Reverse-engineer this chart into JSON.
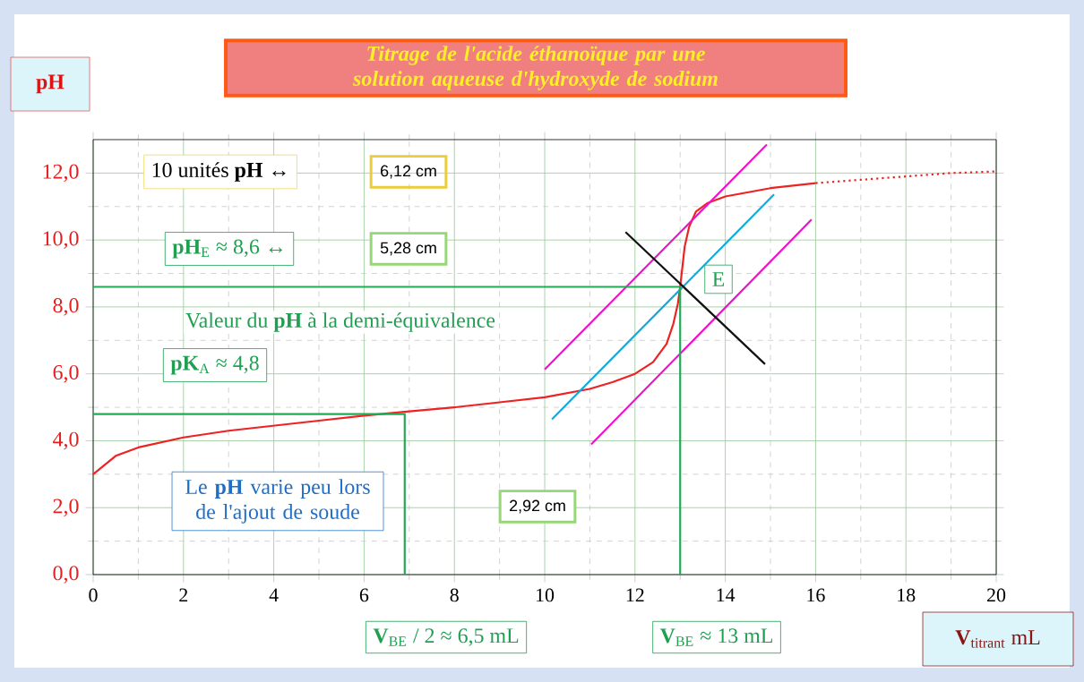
{
  "chart_data": {
    "type": "line",
    "title": "Titrage de l'acide éthanoïque par une solution aqueuse d'hydroxyde de sodium",
    "xlabel": "**V**$_{titrant}$ mL",
    "ylabel": "pH",
    "xlim": [
      0,
      20
    ],
    "ylim": [
      0,
      13
    ],
    "xticks": [
      0,
      2,
      4,
      6,
      8,
      10,
      12,
      14,
      16,
      18,
      20
    ],
    "yticks": [
      {
        "value": 0,
        "label": "0,0"
      },
      {
        "value": 2,
        "label": "2,0"
      },
      {
        "value": 4,
        "label": "4,0"
      },
      {
        "value": 6,
        "label": "6,0"
      },
      {
        "value": 8,
        "label": "8,0"
      },
      {
        "value": 10,
        "label": "10,0"
      },
      {
        "value": 12,
        "label": "12,0"
      }
    ],
    "grid": true,
    "marker": "none",
    "series": [
      {
        "color": "#ee2222",
        "line_style": "solid",
        "x": [
          0,
          0.5,
          1,
          2,
          3,
          4,
          5,
          6,
          7,
          8,
          9,
          10,
          11,
          11.5,
          12,
          12.4,
          12.7,
          12.85,
          12.95,
          13,
          13.05,
          13.1,
          13.2,
          13.35,
          13.6,
          14,
          15,
          16
        ],
        "values": [
          3.0,
          3.55,
          3.8,
          4.1,
          4.3,
          4.45,
          4.6,
          4.75,
          4.88,
          5.0,
          5.15,
          5.3,
          5.55,
          5.75,
          6.0,
          6.35,
          6.9,
          7.5,
          8.1,
          8.6,
          9.2,
          9.8,
          10.4,
          10.85,
          11.1,
          11.3,
          11.55,
          11.7
        ]
      },
      {
        "color": "#ee2222",
        "line_style": "dotted",
        "x": [
          16,
          17,
          18,
          19,
          20
        ],
        "values": [
          11.7,
          11.8,
          11.9,
          12.0,
          12.05
        ]
      },
      {
        "color": "#ee11cc",
        "line_style": "solid",
        "x": [
          10.0,
          14.92
        ],
        "values": [
          6.13,
          12.85
        ]
      },
      {
        "color": "#ee11cc",
        "line_style": "solid",
        "x": [
          11.03,
          15.91
        ],
        "values": [
          3.89,
          10.61
        ]
      },
      {
        "color": "#11aadd",
        "line_style": "solid",
        "x": [
          10.16,
          15.08
        ],
        "values": [
          4.64,
          11.36
        ]
      },
      {
        "color": "#111111",
        "line_style": "solid",
        "x": [
          11.79,
          14.88
        ],
        "values": [
          10.24,
          6.29
        ]
      },
      {
        "color": "#22aa55",
        "line_style": "solid",
        "x": [
          0,
          13,
          13
        ],
        "values": [
          8.6,
          8.6,
          0
        ]
      },
      {
        "color": "#22aa55",
        "line_style": "solid",
        "x": [
          0,
          6.9,
          6.9
        ],
        "values": [
          4.8,
          4.8,
          0
        ]
      }
    ],
    "annotations": [
      "10 unités **pH** ↔",
      "6,12 cm",
      "**pH**$_{E}$ ≈ 8,6 ↔",
      "5,28 cm",
      "Valeur du **pH** à la demi-équivalence",
      "**pK**$_{A}$ ≈ 4,8",
      "E",
      "Le **pH** varie peu lors de l'ajout de soude",
      "2,92 cm",
      "**V**$_{BE}$ / 2 ≈ 6,5 mL",
      "**V**$_{BE}$ ≈ 13 mL"
    ]
  }
}
